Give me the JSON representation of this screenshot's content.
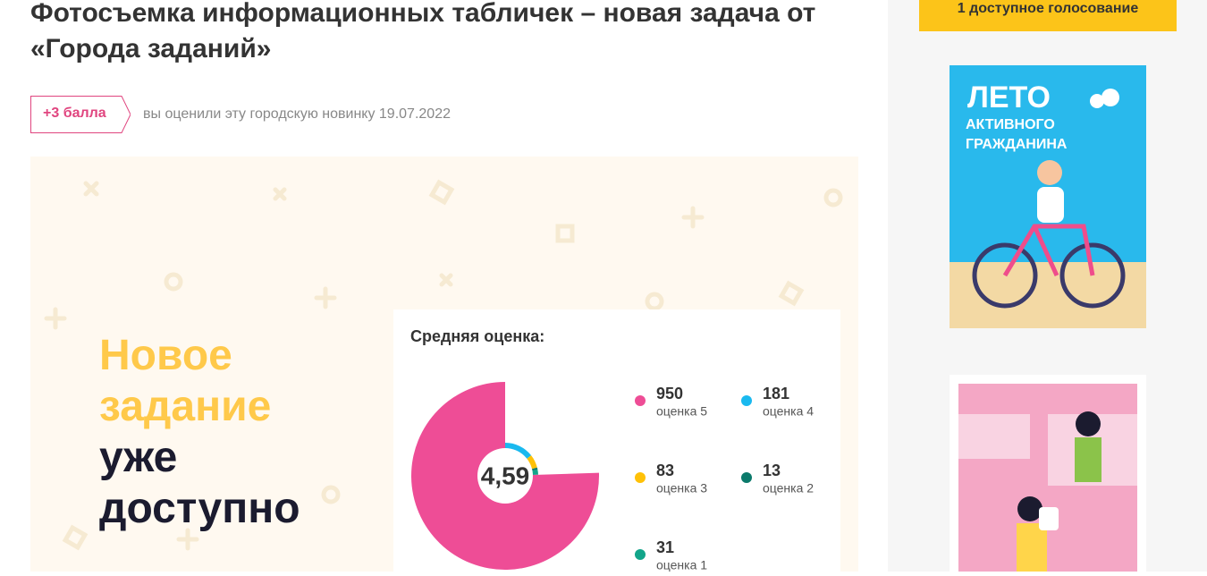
{
  "header": {
    "title": "Фотосъемка информационных табличек – новая задача от «Города заданий»"
  },
  "badge": {
    "points": "+3 балла",
    "text": "вы оценили эту городскую новинку 19.07.2022"
  },
  "promo": {
    "lines": [
      "Новое",
      "задание",
      "уже",
      "доступно"
    ]
  },
  "rating": {
    "title": "Средняя оценка:",
    "average": "4,59",
    "items": [
      {
        "value": 950,
        "label": "оценка 5",
        "color": "#ee4d96"
      },
      {
        "value": 181,
        "label": "оценка 4",
        "color": "#1ab9ef"
      },
      {
        "value": 83,
        "label": "оценка 3",
        "color": "#ffc107"
      },
      {
        "value": 13,
        "label": "оценка 2",
        "color": "#0b7a6b"
      },
      {
        "value": 31,
        "label": "оценка 1",
        "color": "#12a58a"
      }
    ]
  },
  "sidebar": {
    "vote_button": "1 доступное голосование",
    "banner_title": "ЛЕТО",
    "banner_subtitle": "АКТИВНОГО ГРАЖДАНИНА"
  }
}
